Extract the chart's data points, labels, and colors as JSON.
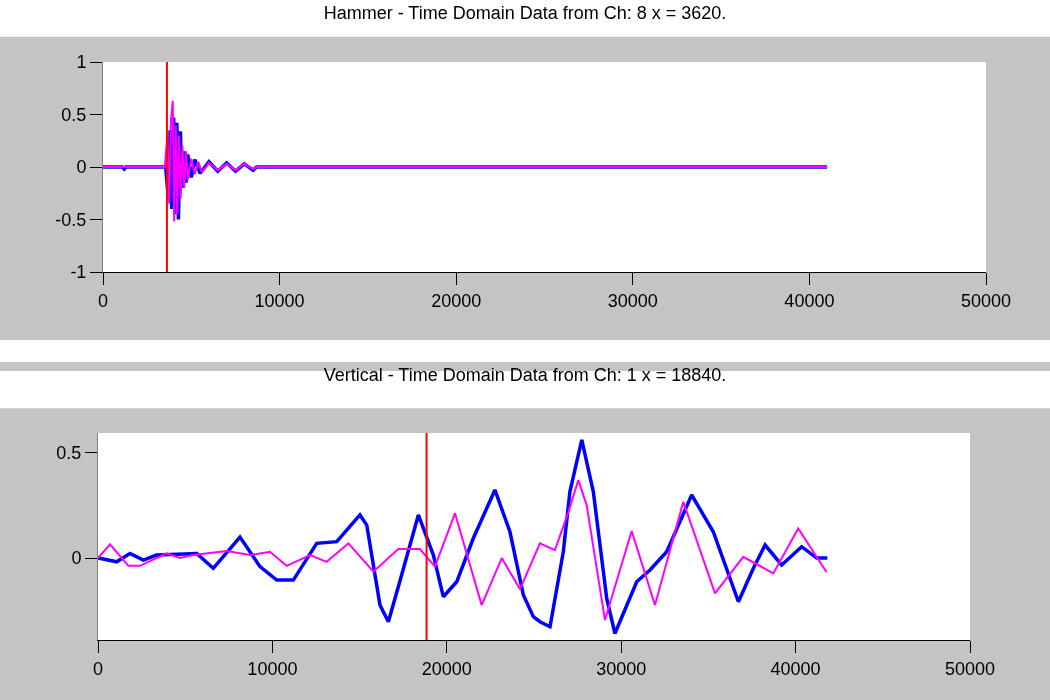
{
  "chart_data": [
    {
      "type": "line",
      "title": "Hammer - Time Domain Data from Ch: 8 x = 3620.",
      "xlim": [
        0,
        50000
      ],
      "xticks": [
        0,
        10000,
        20000,
        30000,
        40000,
        50000
      ],
      "ylim": [
        -1,
        1
      ],
      "yticks": [
        -1,
        -0.5,
        0,
        0.5,
        1
      ],
      "marker": "none",
      "line_style": "solid",
      "ref_lines": [
        {
          "axis": "x",
          "value": 3620,
          "color": "#ff0000"
        }
      ],
      "series": [
        {
          "color": "#0000ff",
          "x": [
            0,
            1100,
            1200,
            1300,
            3550,
            3700,
            3800,
            3900,
            4000,
            4080,
            4180,
            4270,
            4380,
            4480,
            4600,
            4700,
            4800,
            5000,
            5200,
            5500,
            6000,
            6500,
            7000,
            7500,
            8000,
            8500,
            8700,
            41000
          ],
          "values": [
            0,
            0,
            -0.02,
            0,
            0,
            -0.3,
            0.35,
            -0.4,
            0.47,
            -0.45,
            0.42,
            -0.5,
            0.34,
            -0.2,
            0.15,
            -0.15,
            0.12,
            -0.1,
            0.07,
            -0.06,
            0.05,
            -0.04,
            0.04,
            -0.04,
            0.03,
            -0.03,
            0,
            0
          ]
        },
        {
          "color": "#ff00ff",
          "x": [
            0,
            3500,
            3650,
            3750,
            3850,
            3950,
            4030,
            4120,
            4200,
            4300,
            4400,
            4500,
            4600,
            4700,
            4800,
            5000,
            5200,
            5400,
            5600,
            6000,
            6500,
            7000,
            7500,
            8000,
            8500,
            8700,
            41000
          ],
          "values": [
            0,
            0,
            0.3,
            -0.35,
            0.45,
            0.63,
            -0.52,
            0.4,
            -0.45,
            0.3,
            -0.3,
            0.2,
            -0.2,
            0.15,
            -0.12,
            0.08,
            -0.07,
            0.05,
            -0.05,
            0.04,
            -0.03,
            0.03,
            -0.03,
            0.03,
            -0.02,
            0,
            0
          ]
        }
      ]
    },
    {
      "type": "line",
      "title": "Vertical - Time Domain Data from Ch: 1 x = 18840.",
      "xlim": [
        0,
        50000
      ],
      "xticks": [
        0,
        10000,
        20000,
        30000,
        40000,
        50000
      ],
      "ylim": [
        -0.39,
        0.595
      ],
      "yticks": [
        0,
        0.5
      ],
      "marker": "none",
      "line_style": "solid",
      "ref_lines": [
        {
          "axis": "x",
          "value": 18840,
          "color": "#ff0000"
        }
      ],
      "series": [
        {
          "color": "#0000ff",
          "x": [
            0,
            1070,
            1835,
            2600,
            3360,
            5660,
            6610,
            8140,
            9290,
            10250,
            11200,
            12540,
            13690,
            15020,
            15410,
            16170,
            16650,
            17410,
            18370,
            19230,
            19800,
            20570,
            21520,
            22760,
            23620,
            24390,
            24960,
            25340,
            25920,
            26680,
            27060,
            27740,
            28400,
            29170,
            29640,
            30890,
            31650,
            32610,
            34040,
            35280,
            36720,
            37580,
            38250,
            39200,
            40350,
            41210,
            41820
          ],
          "values": [
            0,
            -0.018,
            0.022,
            -0.01,
            0.014,
            0.022,
            -0.049,
            0.1,
            -0.041,
            -0.105,
            -0.105,
            0.07,
            0.078,
            0.205,
            0.157,
            -0.224,
            -0.303,
            -0.081,
            0.205,
            0.014,
            -0.184,
            -0.113,
            0.094,
            0.324,
            0.125,
            -0.176,
            -0.279,
            -0.303,
            -0.327,
            0.03,
            0.316,
            0.562,
            0.316,
            -0.192,
            -0.359,
            -0.113,
            -0.057,
            0.03,
            0.3,
            0.125,
            -0.208,
            -0.049,
            0.062,
            -0.033,
            0.054,
            0,
            0
          ]
        },
        {
          "color": "#ff00ff",
          "x": [
            0,
            690,
            1740,
            2410,
            3940,
            4700,
            5460,
            7380,
            8720,
            9860,
            10820,
            12160,
            13110,
            14360,
            15790,
            17220,
            18460,
            19320,
            20470,
            22000,
            23150,
            24200,
            25340,
            26200,
            26970,
            27540,
            28020,
            29070,
            30600,
            31940,
            33560,
            35380,
            37000,
            38720,
            40150,
            41780
          ],
          "values": [
            0,
            0.065,
            -0.037,
            -0.037,
            0.022,
            0,
            0.014,
            0.033,
            0.014,
            0.03,
            -0.037,
            0.014,
            -0.018,
            0.07,
            -0.065,
            0.043,
            0.043,
            -0.041,
            0.213,
            -0.224,
            0,
            -0.148,
            0.07,
            0.038,
            0.218,
            0.371,
            0.252,
            -0.295,
            0.129,
            -0.224,
            0.268,
            -0.168,
            0.006,
            -0.073,
            0.141,
            -0.068
          ]
        }
      ]
    }
  ]
}
